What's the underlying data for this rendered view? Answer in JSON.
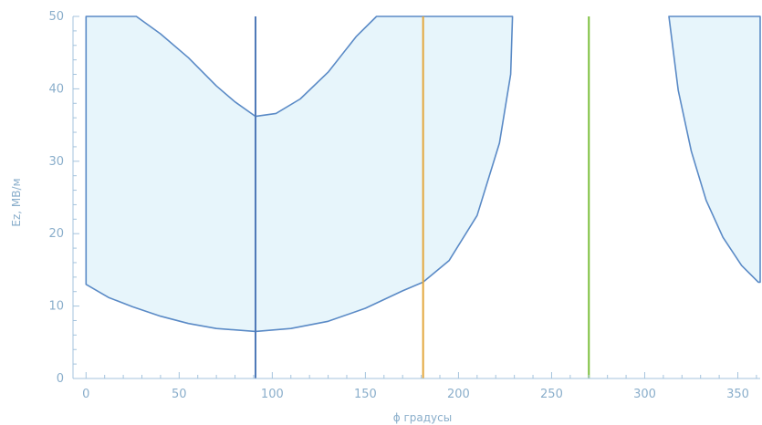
{
  "chart_data": {
    "type": "area",
    "xlabel": "ϕ  градусы",
    "ylabel": "Ez, МВ/м",
    "xlim": [
      -7,
      362
    ],
    "ylim": [
      0,
      50
    ],
    "xticks": [
      0,
      50,
      100,
      150,
      200,
      250,
      300,
      350
    ],
    "yticks": [
      0,
      10,
      20,
      30,
      40,
      50
    ],
    "grid": false,
    "regions": [
      {
        "upper": [
          [
            0,
            50
          ],
          [
            27,
            50
          ],
          [
            40,
            47.6
          ],
          [
            55,
            44.3
          ],
          [
            70,
            40.4
          ],
          [
            80,
            38.2
          ],
          [
            91,
            36.2
          ],
          [
            102,
            36.6
          ],
          [
            115,
            38.6
          ],
          [
            130,
            42.3
          ],
          [
            145,
            47.2
          ],
          [
            156,
            50
          ],
          [
            228,
            50
          ]
        ],
        "lower": [
          [
            0,
            13
          ],
          [
            12,
            11.2
          ],
          [
            25,
            9.9
          ],
          [
            40,
            8.6
          ],
          [
            55,
            7.6
          ],
          [
            70,
            6.9
          ],
          [
            91,
            6.5
          ],
          [
            110,
            6.9
          ],
          [
            130,
            7.9
          ],
          [
            150,
            9.7
          ],
          [
            170,
            12.1
          ],
          [
            181,
            13.3
          ],
          [
            195,
            16.3
          ],
          [
            210,
            22.5
          ],
          [
            222,
            32.5
          ],
          [
            228,
            42
          ],
          [
            229,
            50
          ]
        ],
        "fill": "#e7f5fb",
        "stroke": "#5a8ac6"
      },
      {
        "upper": [
          [
            313,
            50
          ],
          [
            362,
            50
          ]
        ],
        "lower": [
          [
            313,
            50
          ],
          [
            318,
            39.8
          ],
          [
            325,
            31.4
          ],
          [
            333,
            24.6
          ],
          [
            342,
            19.5
          ],
          [
            352,
            15.6
          ],
          [
            361,
            13.3
          ],
          [
            362,
            13.3
          ]
        ],
        "fill": "#e7f5fb",
        "stroke": "#5a8ac6"
      }
    ],
    "vlines": [
      {
        "x": 91,
        "y": [
          0,
          50
        ],
        "color": "#4f79b8"
      },
      {
        "x": 181,
        "y": [
          0,
          50
        ],
        "color": "#e3a73c"
      },
      {
        "x": 270,
        "y": [
          0,
          50
        ],
        "color": "#7cbf3d"
      }
    ],
    "colors": {
      "axis": "#a4c3dd",
      "tick_text": "#8aaecb"
    }
  }
}
